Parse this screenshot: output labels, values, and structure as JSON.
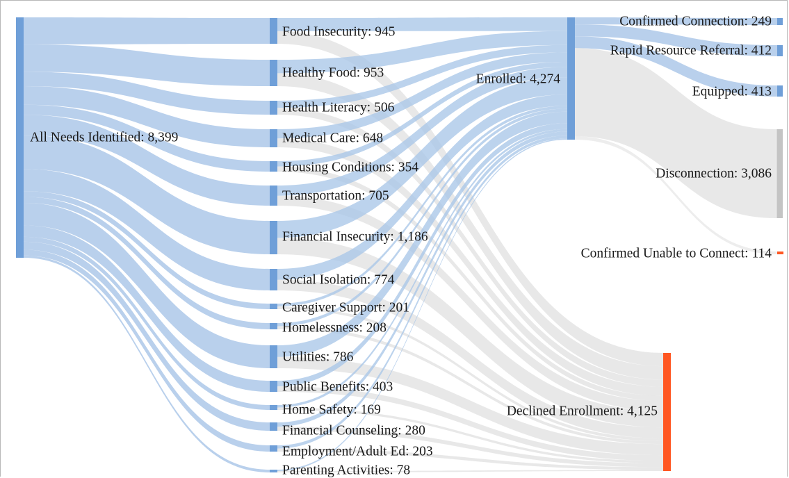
{
  "chart_data": {
    "type": "sankey",
    "title": "",
    "source": {
      "name": "All Needs Identified",
      "value": 8399
    },
    "needs": [
      {
        "name": "Food Insecurity",
        "value": 945
      },
      {
        "name": "Healthy Food",
        "value": 953
      },
      {
        "name": "Health Literacy",
        "value": 506
      },
      {
        "name": "Medical Care",
        "value": 648
      },
      {
        "name": "Housing Conditions",
        "value": 354
      },
      {
        "name": "Transportation",
        "value": 705
      },
      {
        "name": "Financial Insecurity",
        "value": 1186
      },
      {
        "name": "Social Isolation",
        "value": 774
      },
      {
        "name": "Caregiver Support",
        "value": 201
      },
      {
        "name": "Homelessness",
        "value": 208
      },
      {
        "name": "Utilities",
        "value": 786
      },
      {
        "name": "Public Benefits",
        "value": 403
      },
      {
        "name": "Home Safety",
        "value": 169
      },
      {
        "name": "Financial Counseling",
        "value": 280
      },
      {
        "name": "Employment/Adult Ed",
        "value": 203
      },
      {
        "name": "Parenting Activities",
        "value": 78
      }
    ],
    "enrollment": [
      {
        "name": "Enrolled",
        "value": 4274
      },
      {
        "name": "Declined Enrollment",
        "value": 4125
      }
    ],
    "outcomes": [
      {
        "name": "Confirmed Connection",
        "value": 249
      },
      {
        "name": "Rapid Resource Referral",
        "value": 412
      },
      {
        "name": "Equipped",
        "value": 413
      },
      {
        "name": "Disconnection",
        "value": 3086
      },
      {
        "name": "Confirmed Unable to Connect",
        "value": 114
      }
    ]
  },
  "colors": {
    "node_blue": "#6f9fd8",
    "link_blue": "#a9c6e8",
    "link_gray": "#d6d6d6",
    "declined_orange": "#ff5722",
    "disconnection_gray": "#c4c4c4"
  }
}
